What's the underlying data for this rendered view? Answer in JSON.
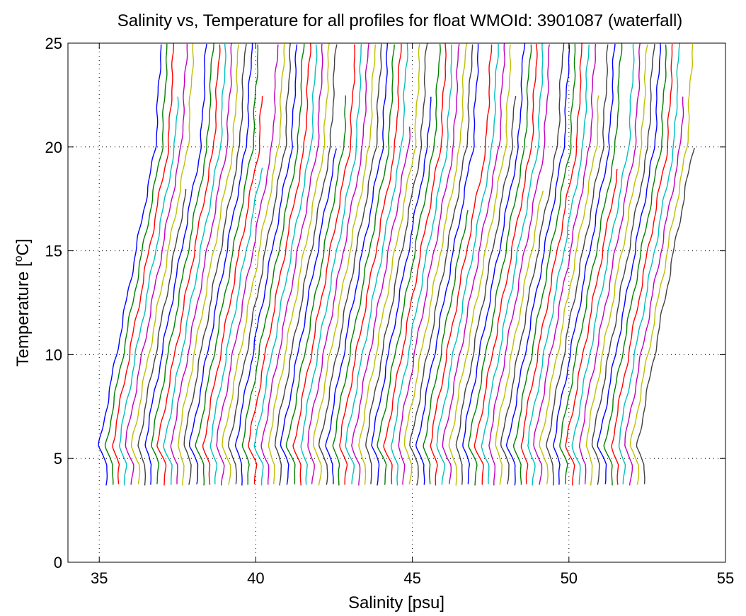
{
  "chart_data": {
    "type": "line",
    "title": "Salinity vs, Temperature for all profiles for float WMOId: 3901087 (waterfall)",
    "xlabel": "Salinity [psu]",
    "ylabel_main": "Temperature [",
    "ylabel_sup": "o",
    "ylabel_end": "C]",
    "xlim": [
      34,
      55
    ],
    "ylim": [
      0,
      25
    ],
    "xticks": [
      "35",
      "40",
      "45",
      "50",
      "55"
    ],
    "yticks": [
      "0",
      "5",
      "10",
      "15",
      "20",
      "25"
    ],
    "grid": "dotted",
    "waterfall": {
      "profile_count": 84,
      "first_bottom_salinity": 35.2,
      "salinity_step": 0.207,
      "min_temperature": 3.7,
      "max_temperature": 25
    },
    "series_colors": [
      "#0000ff",
      "#008000",
      "#ff0000",
      "#00bfbf",
      "#bf00bf",
      "#bfbf00",
      "#404040"
    ]
  }
}
